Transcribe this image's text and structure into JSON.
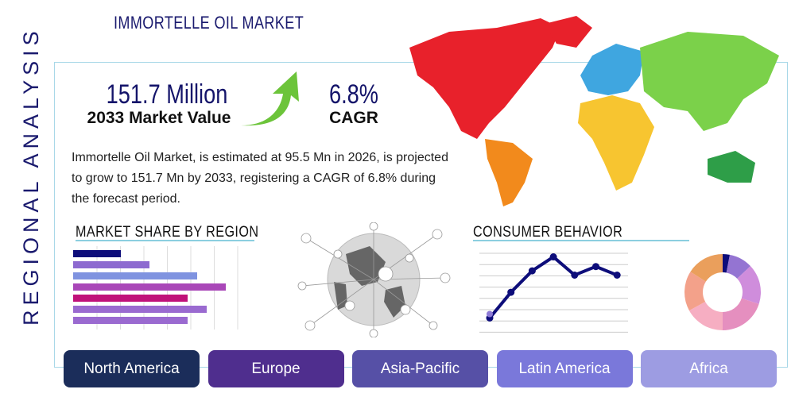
{
  "title": "IMMORTELLE OIL MARKET",
  "side_label": "REGIONAL ANALYSIS",
  "market_value": {
    "value": "151.7 Million",
    "label": "2033 Market Value"
  },
  "cagr": {
    "value": "6.8%",
    "label": "CAGR"
  },
  "description": "Immortelle Oil Market, is estimated at 95.5 Mn in 2026, is projected to grow to 151.7 Mn by 2033, registering a CAGR of 6.8% during the forecast period.",
  "market_share": {
    "heading": "MARKET SHARE BY REGION",
    "bars": [
      {
        "value": 20,
        "color": "#0d0d7a"
      },
      {
        "value": 32,
        "color": "#8d6ad0"
      },
      {
        "value": 52,
        "color": "#7f93e0"
      },
      {
        "value": 64,
        "color": "#a947b8"
      },
      {
        "value": 48,
        "color": "#c0117a"
      },
      {
        "value": 56,
        "color": "#9a6ad0"
      },
      {
        "value": 48,
        "color": "#9a6ad0"
      }
    ]
  },
  "consumer_behavior": {
    "heading": "CONSUMER BEHAVIOR",
    "line": [
      10,
      34,
      54,
      67,
      50,
      58,
      50
    ],
    "donut": [
      {
        "value": 3,
        "color": "#0d0d7a"
      },
      {
        "value": 10,
        "color": "#9474d2"
      },
      {
        "value": 17,
        "color": "#cf8ddc"
      },
      {
        "value": 20,
        "color": "#e58fbf"
      },
      {
        "value": 17,
        "color": "#f6aec2"
      },
      {
        "value": 17,
        "color": "#f3a18a"
      },
      {
        "value": 16,
        "color": "#ea9f5c"
      }
    ]
  },
  "regions": [
    {
      "label": "North America",
      "color": "#1b2d5a"
    },
    {
      "label": "Europe",
      "color": "#4f2e8e"
    },
    {
      "label": "Asia-Pacific",
      "color": "#5650a6"
    },
    {
      "label": "Latin America",
      "color": "#7a78da"
    },
    {
      "label": "Africa",
      "color": "#9d9ce2"
    }
  ]
}
